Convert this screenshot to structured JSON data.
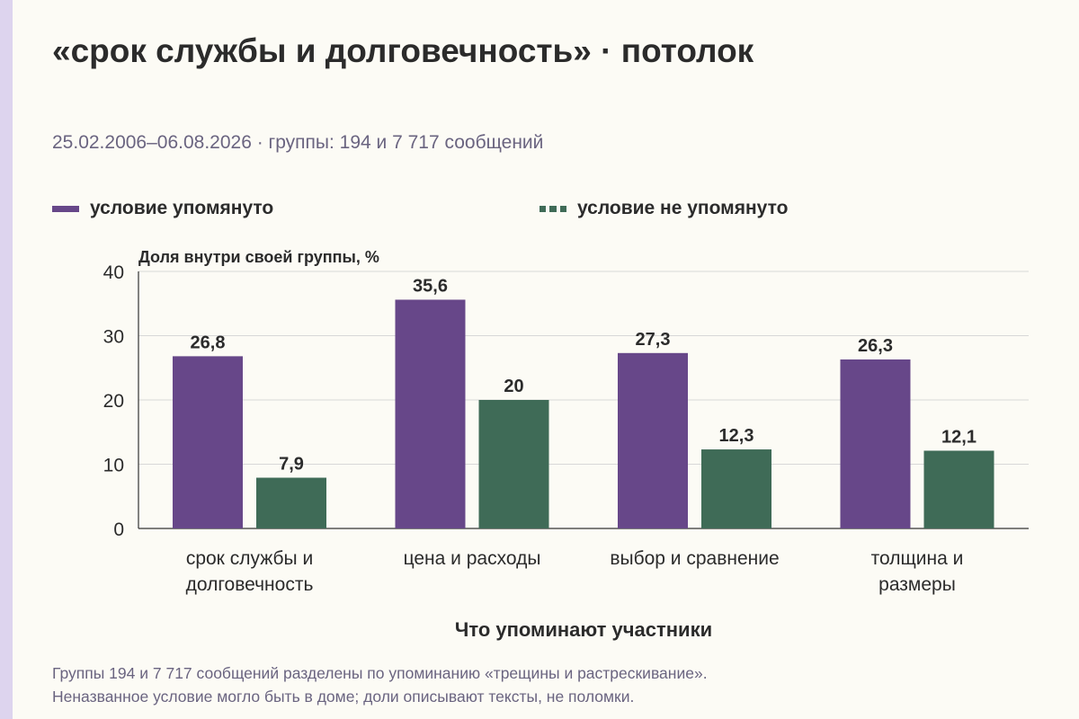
{
  "page": {
    "title": "«срок службы и долговечность» · потолок",
    "subtitle": "25.02.2006–06.08.2026 · группы: 194 и 7 717 сообщений",
    "footnote_lines": [
      "Группы 194 и 7 717 сообщений разделены по упоминанию «трещины и растрескивание».",
      "Неназванное условие могло быть в доме; доли описывают тексты, не поломки."
    ]
  },
  "colors": {
    "background": "#fcfbf5",
    "strip": "#ddd4ee",
    "mentioned": "#674789",
    "not_mentioned": "#3f6b57",
    "grid": "#d8d8d8",
    "axis": "#333333",
    "text": "#2b2b2b",
    "muted": "#6a6480"
  },
  "chart_data": {
    "type": "bar",
    "title": "«срок службы и долговечность» · потолок",
    "ylabel": "Доля внутри своей группы, %",
    "xlabel": "Что упоминают участники",
    "ylim": [
      0,
      40
    ],
    "yticks": [
      0,
      10,
      20,
      30,
      40
    ],
    "grid": true,
    "legend_position": "top",
    "categories": [
      [
        "срок службы и",
        "долговечность"
      ],
      [
        "цена и расходы"
      ],
      [
        "выбор и сравнение"
      ],
      [
        "толщина и",
        "размеры"
      ]
    ],
    "series": [
      {
        "name": "условие упомянуто",
        "values": [
          26.8,
          35.6,
          27.3,
          26.3
        ],
        "labels": [
          "26,8",
          "35,6",
          "27,3",
          "26,3"
        ],
        "color": "#674789"
      },
      {
        "name": "условие не упомянуто",
        "values": [
          7.9,
          20,
          12.3,
          12.1
        ],
        "labels": [
          "7,9",
          "20",
          "12,3",
          "12,1"
        ],
        "color": "#3f6b57"
      }
    ]
  }
}
